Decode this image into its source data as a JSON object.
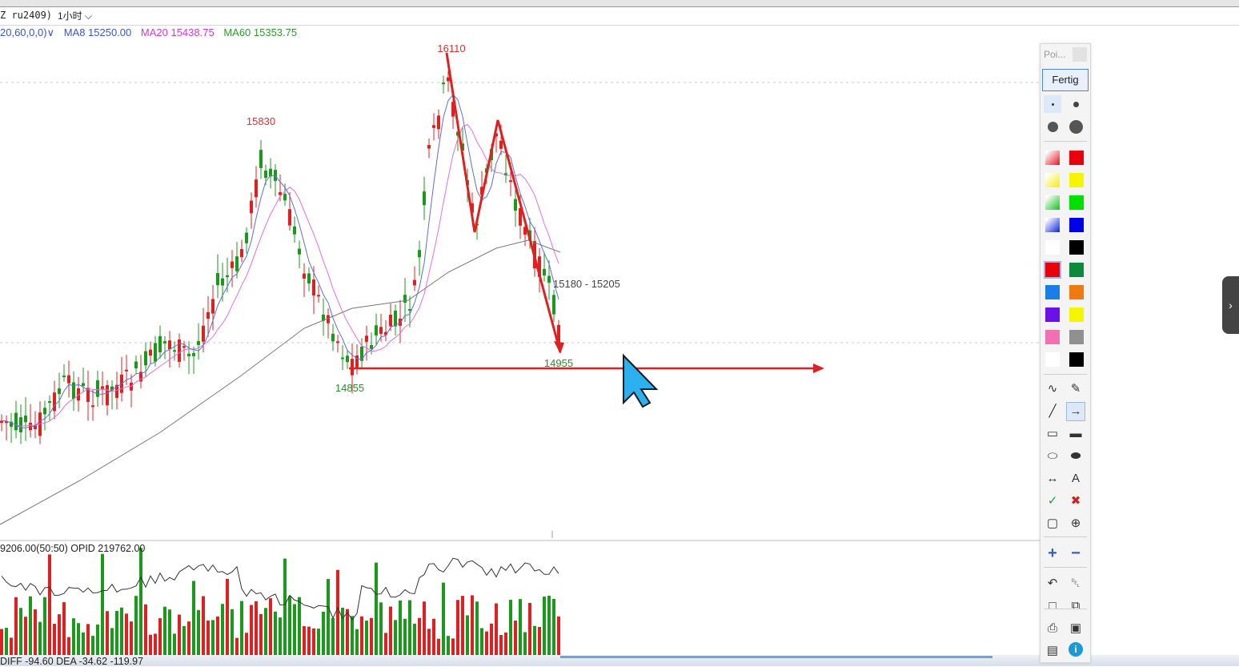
{
  "header": {
    "symbol": "Z ru2409)",
    "period": "1小时",
    "period_chevron": "chevron-down-icon"
  },
  "ma_legend": {
    "params": "20,60,0,0)",
    "ma8": "MA8 15250.00",
    "ma20": "MA20 15438.75",
    "ma60": "MA60 15353.75",
    "colors": {
      "params": "#3a57c8",
      "ma8": "#3a57c8",
      "ma20": "#d23bd2",
      "ma60": "#2e9a2e"
    }
  },
  "annotations": {
    "high_1": "15830",
    "high_2": "16110",
    "low_1": "14855",
    "low_2": "14955",
    "zone": "15180 - 15205"
  },
  "sub_legend": {
    "text": "9206.00(50:50)  OPID 219762.00"
  },
  "bottom_legend": {
    "text": "DIFF -94.60  DEA -34.62  -119.97"
  },
  "palette": {
    "title": "Poi...",
    "done_label": "Fertig",
    "colors_gradient": [
      "#e8222a",
      "#f5ec1a",
      "#22c42a",
      "#1a2fe0",
      "#ffffff"
    ],
    "colors_solid_a": [
      "#e8000a",
      "#f5f500",
      "#00e000",
      "#0000e8",
      "#000000"
    ],
    "colors_solid_b": [
      "#e8000a",
      "#0a8a3a",
      "#1a7ee8",
      "#f07a10",
      "#6a10e8",
      "#f5f500",
      "#f070b0",
      "#909090",
      "#ffffff",
      "#000000"
    ],
    "tools": [
      "curve-icon",
      "pen-icon",
      "line-icon",
      "arrow-line-icon",
      "rectangle-icon",
      "filled-rectangle-icon",
      "ellipse-icon",
      "filled-ellipse-icon",
      "double-arrow-icon",
      "text-icon",
      "check-icon",
      "cross-icon",
      "crop-icon",
      "zoom-icon",
      "plus-icon",
      "minus-icon",
      "undo-icon",
      "trash-icon",
      "new-page-icon",
      "copy-icon",
      "print-icon",
      "save-icon",
      "screen-icon",
      "info-icon"
    ],
    "text_tool_glyph": "A"
  },
  "chart_data": {
    "type": "candlestick",
    "annotated_prices": [
      16110,
      15830,
      14855,
      14955
    ],
    "zone": [
      15180,
      15205
    ],
    "ma_values": {
      "MA8": 15250.0,
      "MA20": 15438.75,
      "MA60": 15353.75
    }
  }
}
